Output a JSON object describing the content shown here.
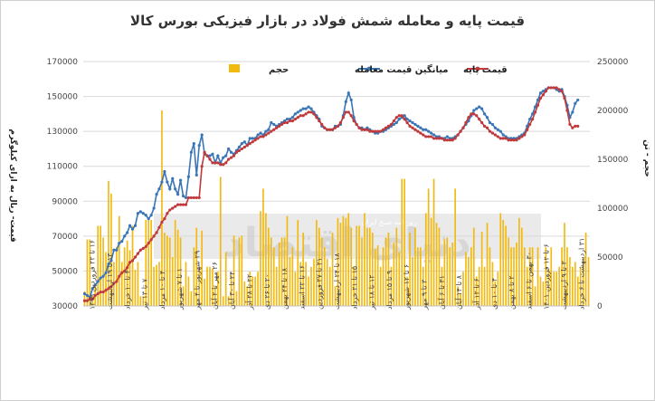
{
  "title": "قیمت پایه و معامله شمش فولاد در بازار فیزیکی بورس کالا",
  "watermark": "دنیای اقتصاد",
  "watermark_sub": "روزنامه صبح ایران",
  "colors": {
    "volume": "#F2B90F",
    "avg_price": "#3A75B5",
    "base_price": "#C0393B",
    "grid": "#D9D9D9"
  },
  "chart_data": {
    "type": "bar+line",
    "title": "قیمت پایه و معامله شمش فولاد در بازار فیزیکی بورس کالا",
    "ylabel_left": "قیمت- ریال به ازای کیلوگرم",
    "ylabel_right": "حجم - تن",
    "ylim_left": [
      30000,
      170000
    ],
    "ylim_right": [
      0,
      250000
    ],
    "yticks_left": [
      "170000",
      "150000",
      "130000",
      "110000",
      "90000",
      "70000",
      "50000",
      "30000"
    ],
    "yticks_right": [
      "250000",
      "200000",
      "150000",
      "100000",
      "50000",
      "0"
    ],
    "legend": [
      {
        "key": "base",
        "label": "قیمت پایه"
      },
      {
        "key": "avg",
        "label": "میانگین قیمت معامله"
      },
      {
        "key": "vol",
        "label": "حجم"
      }
    ],
    "legend_position": "top",
    "x_tick_labels": [
      "۱۶ تا ۲۲ فروردین ۱۳۹۹",
      "۱۳ تا ۱۹ اردیبهشت",
      "۴ تا ۱۰ خرداد",
      "۷ تا ۱۳ تیر",
      "۴ تا ۱۰ مرداد",
      "۱ تا ۷ شهریور",
      "۲۹ شهریور تا ۴ مهر",
      "۲۶ مهر تا ۲ آبان",
      "۲۴ تا ۳۰ آبان",
      "۲۲ تا ۲۸ آذر",
      "۲۰ تا ۲۶ دی",
      "۱۸ تا ۲۴ بهمن",
      "۱۶ تا ۲۲ اسفند",
      "۲۱ تا ۲۷ فروردین",
      "۱۸ تا ۲۴ اردیبهشت",
      "۱۵ تا ۲۱ خرداد",
      "۱۲ تا ۱۸ تیر",
      "۹ تا ۱۵ مرداد",
      "۶ تا ۱۲ شهریور",
      "۳ تا ۹ مهر",
      "۳۱ تا ۶ آبان",
      "۸ تا ۱۴ آبان",
      "۶ تا ۱۲ آذر",
      "۴ تا ۱۰ دی",
      "۲ تا ۸ بهمن",
      "۳۰ بهمن تا ۶ اسفند",
      "۶ تا ۱۲ فروردین ۱۴۰۱",
      "۳ تا ۹ اردیبهشت",
      "۳۱ اردیبهشت تا ۶ خرداد"
    ],
    "series": [
      {
        "key": "volume",
        "axis": "right",
        "kind": "bar",
        "values": [
          15000,
          68000,
          68000,
          10000,
          20000,
          82000,
          82000,
          70000,
          55000,
          128000,
          115000,
          45000,
          60000,
          92000,
          45000,
          60000,
          67000,
          57000,
          82000,
          37000,
          45000,
          10000,
          10000,
          88000,
          88000,
          88000,
          40000,
          42000,
          45000,
          200000,
          75000,
          72000,
          70000,
          50000,
          88000,
          78000,
          70000,
          20000,
          45000,
          30000,
          15000,
          60000,
          80000,
          40000,
          77000,
          28000,
          40000,
          40000,
          38000,
          20000,
          35000,
          132000,
          10000,
          55000,
          10000,
          32000,
          72000,
          15000,
          70000,
          72000,
          25000,
          20000,
          35000,
          30000,
          30000,
          35000,
          97000,
          120000,
          95000,
          80000,
          70000,
          60000,
          40000,
          65000,
          70000,
          70000,
          92000,
          50000,
          60000,
          35000,
          88000,
          45000,
          75000,
          45000,
          30000,
          40000,
          48000,
          88000,
          80000,
          70000,
          60000,
          48000,
          40000,
          75000,
          20000,
          90000,
          85000,
          92000,
          90000,
          95000,
          80000,
          40000,
          82000,
          82000,
          70000,
          95000,
          80000,
          80000,
          75000,
          58000,
          62000,
          40000,
          60000,
          70000,
          75000,
          40000,
          65000,
          80000,
          55000,
          130000,
          130000,
          30000,
          75000,
          50000,
          80000,
          60000,
          60000,
          40000,
          95000,
          120000,
          90000,
          130000,
          85000,
          80000,
          40000,
          68000,
          70000,
          60000,
          65000,
          120000,
          20000,
          12000,
          35000,
          55000,
          50000,
          60000,
          80000,
          30000,
          40000,
          76000,
          40000,
          85000,
          60000,
          45000,
          25000,
          35000,
          95000,
          88000,
          82000,
          70000,
          60000,
          60000,
          65000,
          90000,
          80000,
          60000,
          40000,
          60000,
          60000,
          20000,
          60000,
          30000,
          25000,
          60000,
          38000,
          60000,
          35000,
          35000,
          40000,
          60000,
          85000,
          60000,
          50000,
          40000,
          45000,
          30000,
          40000,
          50000,
          75000,
          50000
        ]
      },
      {
        "key": "avg",
        "axis": "left",
        "kind": "line",
        "name": "میانگین قیمت معامله",
        "values": [
          37000,
          36000,
          35000,
          40000,
          42000,
          44000,
          46000,
          47000,
          49000,
          54000,
          56000,
          62000,
          62000,
          66000,
          67000,
          70000,
          72000,
          76000,
          74000,
          76000,
          83000,
          84000,
          83000,
          82000,
          80000,
          82000,
          86000,
          94000,
          97000,
          101000,
          107000,
          101000,
          97000,
          103000,
          97000,
          94000,
          102000,
          93000,
          92000,
          104000,
          118000,
          123000,
          105000,
          122000,
          128000,
          117000,
          116000,
          116000,
          117000,
          112000,
          116000,
          112000,
          115000,
          116000,
          120000,
          118000,
          117000,
          119000,
          121000,
          123000,
          124000,
          122000,
          126000,
          126000,
          126000,
          128000,
          129000,
          128000,
          130000,
          131000,
          135000,
          134000,
          133000,
          134000,
          135000,
          136000,
          137000,
          137000,
          138000,
          140000,
          141000,
          142000,
          143000,
          143000,
          144000,
          143000,
          141000,
          139000,
          137000,
          133000,
          132000,
          131000,
          131000,
          131000,
          133000,
          133000,
          134000,
          139000,
          147000,
          152000,
          148000,
          138000,
          134000,
          132000,
          132000,
          131000,
          132000,
          131000,
          130000,
          129000,
          129000,
          130000,
          130000,
          131000,
          132000,
          133000,
          134000,
          135000,
          137000,
          138000,
          139000,
          137000,
          136000,
          135000,
          134000,
          133000,
          132000,
          131000,
          131000,
          130000,
          129000,
          128000,
          127000,
          127000,
          126000,
          126000,
          127000,
          126000,
          126000,
          127000,
          128000,
          130000,
          132000,
          134000,
          136000,
          139000,
          142000,
          143000,
          144000,
          143000,
          140000,
          138000,
          135000,
          134000,
          132000,
          131000,
          130000,
          128000,
          127000,
          126000,
          126000,
          126000,
          126000,
          127000,
          128000,
          129000,
          133000,
          137000,
          140000,
          144000,
          148000,
          152000,
          153000,
          154000,
          155000,
          155000,
          155000,
          154000,
          153000,
          154000,
          150000,
          145000,
          138000,
          141000,
          146000,
          148000
        ]
      },
      {
        "key": "base",
        "axis": "left",
        "kind": "line",
        "name": "قیمت پایه",
        "values": [
          33000,
          33000,
          34000,
          34000,
          36000,
          37000,
          38000,
          38000,
          39000,
          40000,
          41000,
          43000,
          44000,
          47000,
          49000,
          50000,
          52000,
          55000,
          56000,
          58000,
          60000,
          62000,
          63000,
          64000,
          66000,
          68000,
          70000,
          72000,
          75000,
          78000,
          80000,
          83000,
          85000,
          86000,
          87000,
          88000,
          88000,
          88000,
          88000,
          92000,
          92000,
          92000,
          92000,
          92000,
          110000,
          118000,
          116000,
          114000,
          112000,
          112000,
          112000,
          111000,
          111000,
          112000,
          114000,
          115000,
          116000,
          118000,
          119000,
          120000,
          121000,
          122000,
          123000,
          124000,
          125000,
          126000,
          127000,
          127000,
          128000,
          129000,
          130000,
          131000,
          132000,
          133000,
          134000,
          135000,
          135000,
          136000,
          136000,
          137000,
          138000,
          139000,
          139000,
          140000,
          141000,
          141000,
          140000,
          138000,
          136000,
          134000,
          132000,
          131000,
          131000,
          131000,
          132000,
          133000,
          135000,
          138000,
          141000,
          141000,
          139000,
          136000,
          134000,
          132000,
          131000,
          131000,
          131000,
          130000,
          130000,
          130000,
          130000,
          130000,
          131000,
          132000,
          133000,
          134000,
          136000,
          138000,
          139000,
          139000,
          137000,
          135000,
          133000,
          132000,
          131000,
          130000,
          129000,
          128000,
          127000,
          127000,
          127000,
          126000,
          126000,
          126000,
          126000,
          125000,
          125000,
          125000,
          125000,
          126000,
          128000,
          130000,
          132000,
          135000,
          138000,
          140000,
          140000,
          139000,
          137000,
          135000,
          133000,
          132000,
          130000,
          129000,
          128000,
          127000,
          126000,
          126000,
          126000,
          125000,
          125000,
          125000,
          125000,
          126000,
          127000,
          128000,
          131000,
          134000,
          137000,
          141000,
          145000,
          149000,
          151000,
          153000,
          155000,
          155000,
          155000,
          155000,
          154000,
          153000,
          149000,
          142000,
          134000,
          132000,
          133000,
          133000
        ]
      }
    ]
  }
}
